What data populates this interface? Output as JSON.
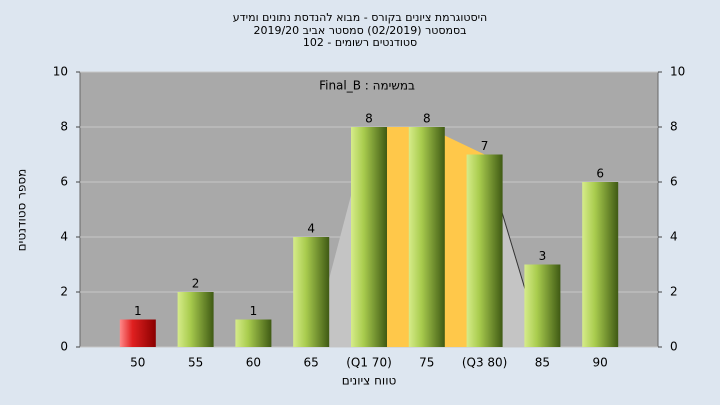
{
  "chart_data": {
    "type": "bar",
    "title": [
      "היסטוגרמת ציונים בקורס - מבוא להנדסת נתונים ומידע",
      "בסמסטר  (02/2019)  סמסטר אביב 2019/20",
      "סטודנטים רשומים - 102"
    ],
    "annotation": "Final_B : במשימה",
    "x_label": "טווח ציונים",
    "y_label": "מספר סטודנטים",
    "categories": [
      "50",
      "55",
      "60",
      "65",
      "(Q1 70)",
      "75",
      "(Q3 80)",
      "85",
      "90"
    ],
    "values": [
      1,
      2,
      1,
      4,
      8,
      8,
      7,
      3,
      6
    ],
    "colors": [
      "#d42020",
      "#8db33a",
      "#8db33a",
      "#8db33a",
      "#8db33a",
      "#8db33a",
      "#8db33a",
      "#8db33a",
      "#8db33a"
    ],
    "ylim": [
      0,
      10
    ],
    "yticks": [
      0,
      2,
      4,
      6,
      8,
      10
    ],
    "y2lim": [
      0,
      10
    ],
    "y2ticks": [
      0,
      2,
      4,
      6,
      8,
      10
    ],
    "grid": true
  }
}
